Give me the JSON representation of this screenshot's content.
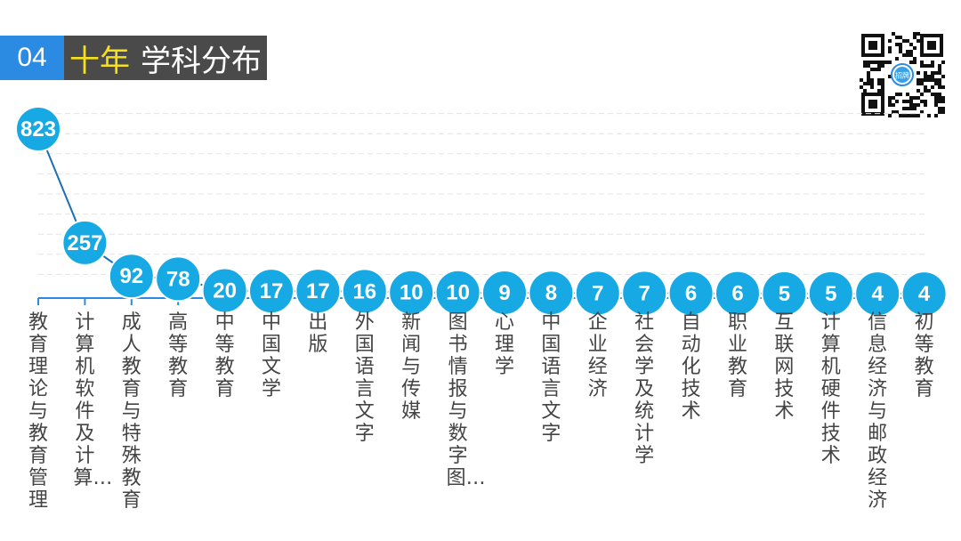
{
  "title": {
    "number": "04",
    "highlight": "十年",
    "text": "学科分布"
  },
  "qr_badge": "招牌",
  "chart_data": {
    "type": "line",
    "categories": [
      "教育理论与教育管理",
      "计算机软件及计算…",
      "成人教育与特殊教育",
      "高等教育",
      "中等教育",
      "中国文学",
      "出版",
      "外国语言文字",
      "新闻与传媒",
      "图书情报与数字图…",
      "心理学",
      "中国语言文字",
      "企业经济",
      "社会学及统计学",
      "自动化技术",
      "职业教育",
      "互联网技术",
      "计算机硬件技术",
      "信息经济与邮政经济",
      "初等教育"
    ],
    "values": [
      823,
      257,
      92,
      78,
      20,
      17,
      17,
      16,
      10,
      10,
      9,
      8,
      7,
      7,
      6,
      6,
      5,
      5,
      4,
      4
    ],
    "value_labels": [
      "823",
      "257",
      "92",
      "78",
      "20",
      "17",
      "17",
      "16",
      "10",
      "10",
      "9",
      "8",
      "7",
      "7",
      "6",
      "6",
      "5",
      "5",
      "4",
      "4"
    ],
    "ylim": [
      0,
      1000
    ],
    "grid": true,
    "legend": "none",
    "colors": {
      "marker": "#17a9e3",
      "line": "#1a6fb5",
      "axis": "#2b8be3",
      "grid": "#e3e3e3"
    }
  }
}
